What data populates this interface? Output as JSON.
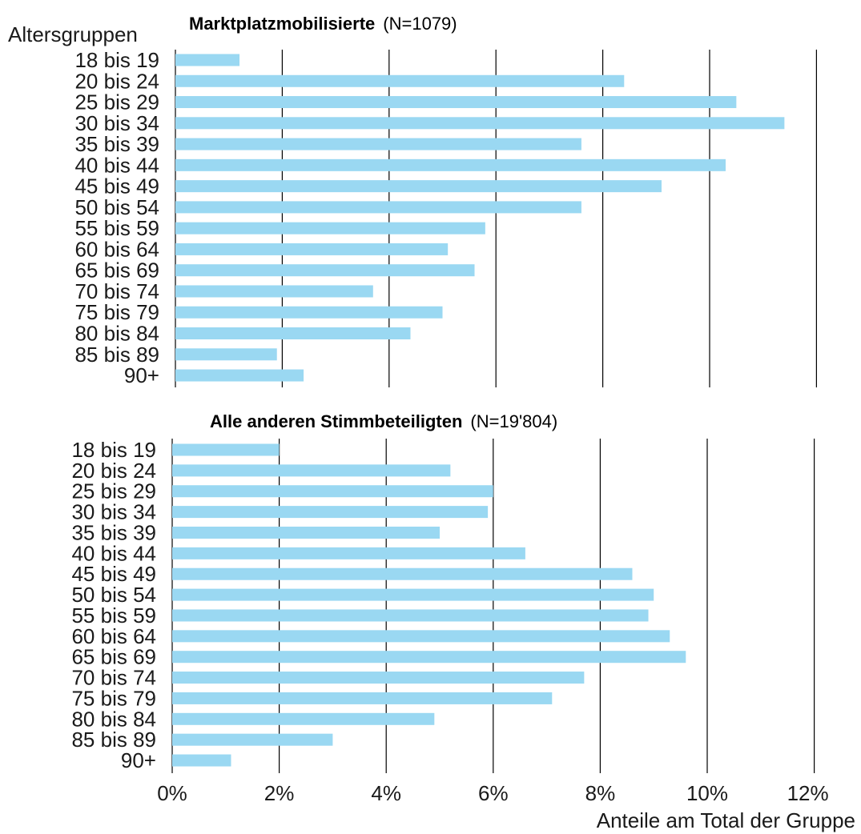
{
  "chart_data": [
    {
      "type": "bar",
      "orientation": "horizontal",
      "title": "Marktplatzmobilisierte",
      "subtitle": "(N=1079)",
      "ylabel": "Altersgruppen",
      "xlabel": "",
      "categories": [
        "18 bis 19",
        "20 bis 24",
        "25 bis 29",
        "30 bis 34",
        "35 bis 39",
        "40 bis 44",
        "45 bis 49",
        "50 bis 54",
        "55 bis 59",
        "60 bis 64",
        "65 bis 69",
        "70 bis 74",
        "75 bis 79",
        "80 bis 84",
        "85 bis 89",
        "90+"
      ],
      "values": [
        1.2,
        8.4,
        10.5,
        11.4,
        7.6,
        10.3,
        9.1,
        7.6,
        5.8,
        5.1,
        5.6,
        3.7,
        5.0,
        4.4,
        1.9,
        2.4
      ],
      "xlim": [
        0,
        12
      ],
      "grid": true,
      "bar_color": "#9ad8f2"
    },
    {
      "type": "bar",
      "orientation": "horizontal",
      "title": "Alle anderen Stimmbeteiligten",
      "subtitle": "(N=19'804)",
      "ylabel": "",
      "xlabel": "Anteile am Total der Gruppe",
      "categories": [
        "18 bis 19",
        "20 bis 24",
        "25 bis 29",
        "30 bis 34",
        "35 bis 39",
        "40 bis 44",
        "45 bis 49",
        "50 bis 54",
        "55 bis 59",
        "60 bis 64",
        "65 bis 69",
        "70 bis 74",
        "75 bis 79",
        "80 bis 84",
        "85 bis 89",
        "90+"
      ],
      "values": [
        2.0,
        5.2,
        6.0,
        5.9,
        5.0,
        6.6,
        8.6,
        9.0,
        8.9,
        9.3,
        9.6,
        7.7,
        7.1,
        4.9,
        3.0,
        1.1
      ],
      "xlim": [
        0,
        12
      ],
      "grid": true,
      "bar_color": "#9ad8f2",
      "tick_labels": [
        "0%",
        "2%",
        "4%",
        "6%",
        "8%",
        "10%",
        "12%"
      ]
    }
  ]
}
